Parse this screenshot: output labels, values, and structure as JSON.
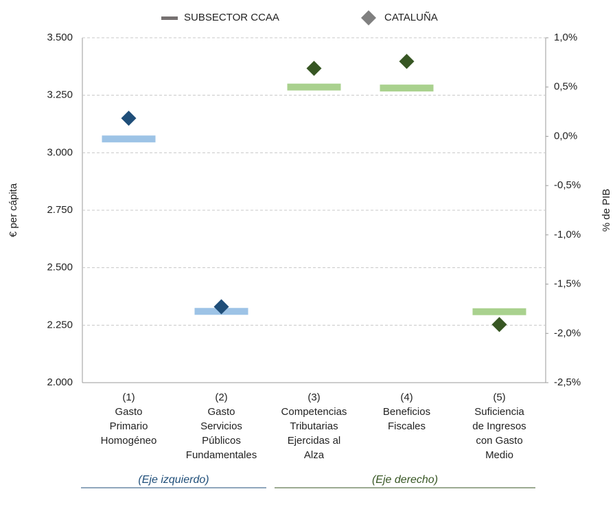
{
  "chart_data": {
    "type": "dot",
    "categories": [
      "(1)\nGasto\nPrimario\nHomogéneo",
      "(2)\nGasto\nServicios\nPúblicos\nFundamentales",
      "(3)\nCompetencias\nTributarias\nEjercidas al\nAlza",
      "(4)\nBeneficios\nFiscales",
      "(5)\nSuficiencia\nde Ingresos\ncon Gasto\nMedio"
    ],
    "category_axes": [
      "y",
      "y",
      "y2",
      "y2",
      "y2"
    ],
    "series": [
      {
        "name": "SUBSECTOR CCAA",
        "marker": "dash",
        "color": "#767171",
        "colors": [
          "#9dc3e6",
          "#9dc3e6",
          "#a9d18e",
          "#a9d18e",
          "#a9d18e"
        ],
        "values": [
          3060,
          2310,
          0.5,
          0.49,
          -1.78
        ]
      },
      {
        "name": "CATALUÑA",
        "marker": "diamond",
        "color": "#808080",
        "colors": [
          "#1f4e79",
          "#1f4e79",
          "#375623",
          "#375623",
          "#375623"
        ],
        "values": [
          3150,
          2330,
          0.69,
          0.76,
          -1.91
        ]
      }
    ],
    "y_label": "€ per cápita",
    "y2_label": "% de PIB",
    "ylim": [
      2000,
      3500
    ],
    "yticks": [
      {
        "value": 2000,
        "label": "2.000"
      },
      {
        "value": 2250,
        "label": "2.250"
      },
      {
        "value": 2500,
        "label": "2.500"
      },
      {
        "value": 2750,
        "label": "2.750"
      },
      {
        "value": 3000,
        "label": "3.000"
      },
      {
        "value": 3250,
        "label": "3.250"
      },
      {
        "value": 3500,
        "label": "3.500"
      }
    ],
    "y2lim": [
      -2.5,
      1.0
    ],
    "y2ticks": [
      {
        "value": -2.5,
        "label": "-2,5%"
      },
      {
        "value": -2.0,
        "label": "-2,0%"
      },
      {
        "value": -1.5,
        "label": "-1,5%"
      },
      {
        "value": -1.0,
        "label": "-1,0%"
      },
      {
        "value": -0.5,
        "label": "-0,5%"
      },
      {
        "value": 0,
        "label": "0,0%"
      },
      {
        "value": 0.5,
        "label": "0,5%"
      },
      {
        "value": 1.0,
        "label": "1,0%"
      }
    ],
    "grid": true,
    "annotations": [
      {
        "text": "(Eje izquierdo)",
        "color": "#1f4e79"
      },
      {
        "text": "(Eje derecho)",
        "color": "#375623"
      }
    ]
  }
}
